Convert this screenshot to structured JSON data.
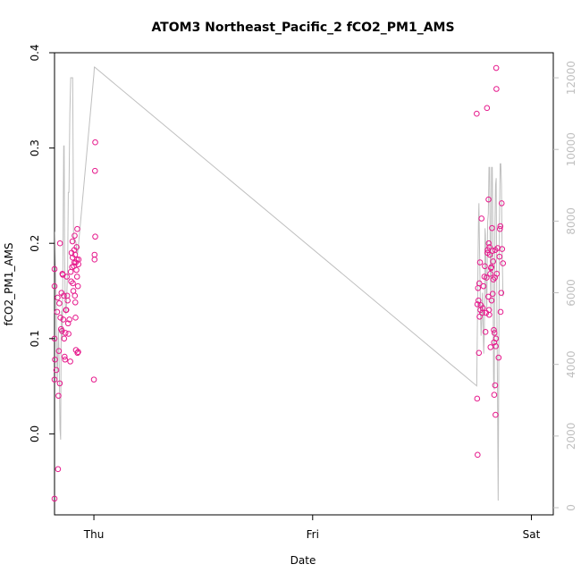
{
  "chart_data": {
    "type": "scatter",
    "title": "ATOM3 Northeast_Pacific_2 fCO2_PM1_AMS",
    "xlabel": "Date",
    "ylabel": "fCO2_PM1_AMS",
    "x_ticks": [
      {
        "label": "Thu",
        "x": 0.0
      },
      {
        "label": "Fri",
        "x": 1.0
      },
      {
        "label": "Sat",
        "x": 2.0
      }
    ],
    "xlim": [
      -0.18,
      2.1
    ],
    "ylim": [
      -0.085,
      0.4
    ],
    "y_ticks": [
      0.0,
      0.1,
      0.2,
      0.3,
      0.4
    ],
    "y2lim": [
      -200,
      12700
    ],
    "y2_ticks": [
      0,
      2000,
      4000,
      6000,
      8000,
      10000,
      12000
    ],
    "colors": {
      "points": "#e6198c",
      "secondary_line": "#bfbfbf",
      "axis": "#000000",
      "secondary_axis": "#bfbfbf"
    },
    "series": [
      {
        "axis": "left",
        "style": "points",
        "points": [
          [
            -0.18,
            -0.068
          ],
          [
            -0.18,
            0.057
          ],
          [
            -0.18,
            0.1
          ],
          [
            -0.18,
            0.155
          ],
          [
            -0.18,
            0.173
          ],
          [
            -0.178,
            0.078
          ],
          [
            -0.172,
            0.067
          ],
          [
            -0.168,
            0.128
          ],
          [
            -0.166,
            0.143
          ],
          [
            -0.164,
            -0.037
          ],
          [
            -0.162,
            0.04
          ],
          [
            -0.16,
            0.087
          ],
          [
            -0.158,
            0.137
          ],
          [
            -0.156,
            0.053
          ],
          [
            -0.155,
            0.2
          ],
          [
            -0.153,
            0.122
          ],
          [
            -0.15,
            0.11
          ],
          [
            -0.148,
            0.148
          ],
          [
            -0.146,
            0.108
          ],
          [
            -0.144,
            0.168
          ],
          [
            -0.142,
            0.167
          ],
          [
            -0.14,
            0.12
          ],
          [
            -0.138,
            0.145
          ],
          [
            -0.136,
            0.1
          ],
          [
            -0.134,
            0.081
          ],
          [
            -0.132,
            0.078
          ],
          [
            -0.13,
            0.106
          ],
          [
            -0.128,
            0.13
          ],
          [
            -0.126,
            0.13
          ],
          [
            -0.124,
            0.165
          ],
          [
            -0.122,
            0.145
          ],
          [
            -0.12,
            0.14
          ],
          [
            -0.118,
            0.116
          ],
          [
            -0.116,
            0.105
          ],
          [
            -0.112,
            0.12
          ],
          [
            -0.108,
            0.076
          ],
          [
            -0.106,
            0.17
          ],
          [
            -0.104,
            0.16
          ],
          [
            -0.102,
            0.19
          ],
          [
            -0.1,
            0.175
          ],
          [
            -0.098,
            0.202
          ],
          [
            -0.097,
            0.185
          ],
          [
            -0.096,
            0.158
          ],
          [
            -0.094,
            0.15
          ],
          [
            -0.092,
            0.176
          ],
          [
            -0.09,
            0.193
          ],
          [
            -0.089,
            0.18
          ],
          [
            -0.088,
            0.208
          ],
          [
            -0.087,
            0.145
          ],
          [
            -0.086,
            0.188
          ],
          [
            -0.085,
            0.138
          ],
          [
            -0.084,
            0.122
          ],
          [
            -0.083,
            0.18
          ],
          [
            -0.082,
            0.088
          ],
          [
            -0.08,
            0.172
          ],
          [
            -0.079,
            0.196
          ],
          [
            -0.078,
            0.183
          ],
          [
            -0.077,
            0.165
          ],
          [
            -0.076,
            0.215
          ],
          [
            -0.075,
            0.085
          ],
          [
            -0.073,
            0.155
          ],
          [
            -0.072,
            0.086
          ],
          [
            -0.071,
            0.178
          ],
          [
            -0.07,
            0.183
          ],
          [
            0.0,
            0.057
          ],
          [
            0.003,
            0.188
          ],
          [
            0.003,
            0.183
          ],
          [
            0.005,
            0.276
          ],
          [
            0.006,
            0.207
          ],
          [
            0.006,
            0.306
          ],
          [
            1.75,
            0.336
          ],
          [
            1.752,
            0.037
          ],
          [
            1.753,
            0.136
          ],
          [
            1.754,
            -0.022
          ],
          [
            1.756,
            0.153
          ],
          [
            1.758,
            0.14
          ],
          [
            1.76,
            0.085
          ],
          [
            1.762,
            0.158
          ],
          [
            1.763,
            0.123
          ],
          [
            1.765,
            0.18
          ],
          [
            1.767,
            0.13
          ],
          [
            1.769,
            0.135
          ],
          [
            1.772,
            0.226
          ],
          [
            1.775,
            0.127
          ],
          [
            1.778,
            0.132
          ],
          [
            1.781,
            0.155
          ],
          [
            1.785,
            0.165
          ],
          [
            1.787,
            0.176
          ],
          [
            1.79,
            0.107
          ],
          [
            1.793,
            0.127
          ],
          [
            1.795,
            0.164
          ],
          [
            1.797,
            0.342
          ],
          [
            1.799,
            0.19
          ],
          [
            1.8,
            0.193
          ],
          [
            1.803,
            0.144
          ],
          [
            1.804,
            0.246
          ],
          [
            1.805,
            0.2
          ],
          [
            1.806,
            0.13
          ],
          [
            1.807,
            0.125
          ],
          [
            1.808,
            0.196
          ],
          [
            1.81,
            0.188
          ],
          [
            1.812,
            0.168
          ],
          [
            1.813,
            0.091
          ],
          [
            1.815,
            0.174
          ],
          [
            1.817,
            0.175
          ],
          [
            1.818,
            0.14
          ],
          [
            1.82,
            0.216
          ],
          [
            1.822,
            0.192
          ],
          [
            1.823,
            0.147
          ],
          [
            1.825,
            0.181
          ],
          [
            1.826,
            0.162
          ],
          [
            1.828,
            0.109
          ],
          [
            1.829,
            0.096
          ],
          [
            1.83,
            0.041
          ],
          [
            1.831,
            0.106
          ],
          [
            1.833,
            0.164
          ],
          [
            1.834,
            0.051
          ],
          [
            1.835,
            0.193
          ],
          [
            1.836,
            0.02
          ],
          [
            1.837,
            0.092
          ],
          [
            1.838,
            0.1
          ],
          [
            1.839,
            0.384
          ],
          [
            1.84,
            0.362
          ],
          [
            1.842,
            0.168
          ],
          [
            1.846,
            0.195
          ],
          [
            1.85,
            0.08
          ],
          [
            1.854,
            0.186
          ],
          [
            1.856,
            0.215
          ],
          [
            1.858,
            0.218
          ],
          [
            1.859,
            0.128
          ],
          [
            1.862,
            0.148
          ],
          [
            1.864,
            0.242
          ],
          [
            1.866,
            0.194
          ],
          [
            1.87,
            0.179
          ]
        ]
      },
      {
        "axis": "right",
        "style": "line",
        "points": [
          [
            -0.178,
            7700
          ],
          [
            -0.176,
            6800
          ],
          [
            -0.174,
            6200
          ],
          [
            -0.172,
            5600
          ],
          [
            -0.17,
            4400
          ],
          [
            -0.168,
            3500
          ],
          [
            -0.165,
            4200
          ],
          [
            -0.162,
            5000
          ],
          [
            -0.158,
            3800
          ],
          [
            -0.155,
            2200
          ],
          [
            -0.152,
            1900
          ],
          [
            -0.15,
            4500
          ],
          [
            -0.148,
            5500
          ],
          [
            -0.145,
            4700
          ],
          [
            -0.142,
            6500
          ],
          [
            -0.14,
            8400
          ],
          [
            -0.138,
            10100
          ],
          [
            -0.136,
            10100
          ],
          [
            -0.134,
            7200
          ],
          [
            -0.131,
            5700
          ],
          [
            -0.128,
            5400
          ],
          [
            -0.125,
            5700
          ],
          [
            -0.122,
            6300
          ],
          [
            -0.12,
            6800
          ],
          [
            -0.117,
            8800
          ],
          [
            -0.114,
            8800
          ],
          [
            -0.11,
            11000
          ],
          [
            -0.106,
            12000
          ],
          [
            -0.1,
            12000
          ],
          [
            -0.097,
            12000
          ],
          [
            -0.093,
            7600
          ],
          [
            -0.09,
            7400
          ],
          [
            -0.087,
            7500
          ],
          [
            -0.082,
            7400
          ],
          [
            -0.078,
            7200
          ],
          [
            -0.074,
            7100
          ],
          [
            0.0,
            12100
          ],
          [
            0.002,
            12300
          ],
          [
            0.003,
            12300
          ],
          [
            1.75,
            3400
          ],
          [
            1.752,
            4500
          ],
          [
            1.754,
            5600
          ],
          [
            1.756,
            7000
          ],
          [
            1.758,
            8000
          ],
          [
            1.76,
            8500
          ],
          [
            1.762,
            7600
          ],
          [
            1.764,
            6800
          ],
          [
            1.767,
            5500
          ],
          [
            1.77,
            4800
          ],
          [
            1.773,
            5200
          ],
          [
            1.776,
            6000
          ],
          [
            1.779,
            5200
          ],
          [
            1.782,
            4300
          ],
          [
            1.785,
            5000
          ],
          [
            1.788,
            7800
          ],
          [
            1.79,
            7600
          ],
          [
            1.793,
            6100
          ],
          [
            1.796,
            5500
          ],
          [
            1.8,
            8000
          ],
          [
            1.803,
            8200
          ],
          [
            1.806,
            9500
          ],
          [
            1.809,
            9500
          ],
          [
            1.812,
            6800
          ],
          [
            1.815,
            5500
          ],
          [
            1.818,
            9500
          ],
          [
            1.821,
            9500
          ],
          [
            1.824,
            7600
          ],
          [
            1.827,
            3600
          ],
          [
            1.83,
            3300
          ],
          [
            1.833,
            7800
          ],
          [
            1.836,
            9000
          ],
          [
            1.839,
            9200
          ],
          [
            1.842,
            5500
          ],
          [
            1.845,
            3200
          ],
          [
            1.848,
            200
          ],
          [
            1.851,
            4200
          ],
          [
            1.854,
            8000
          ],
          [
            1.857,
            9600
          ],
          [
            1.86,
            9600
          ],
          [
            1.863,
            9000
          ],
          [
            1.866,
            7200
          ],
          [
            1.87,
            5900
          ]
        ]
      }
    ]
  }
}
